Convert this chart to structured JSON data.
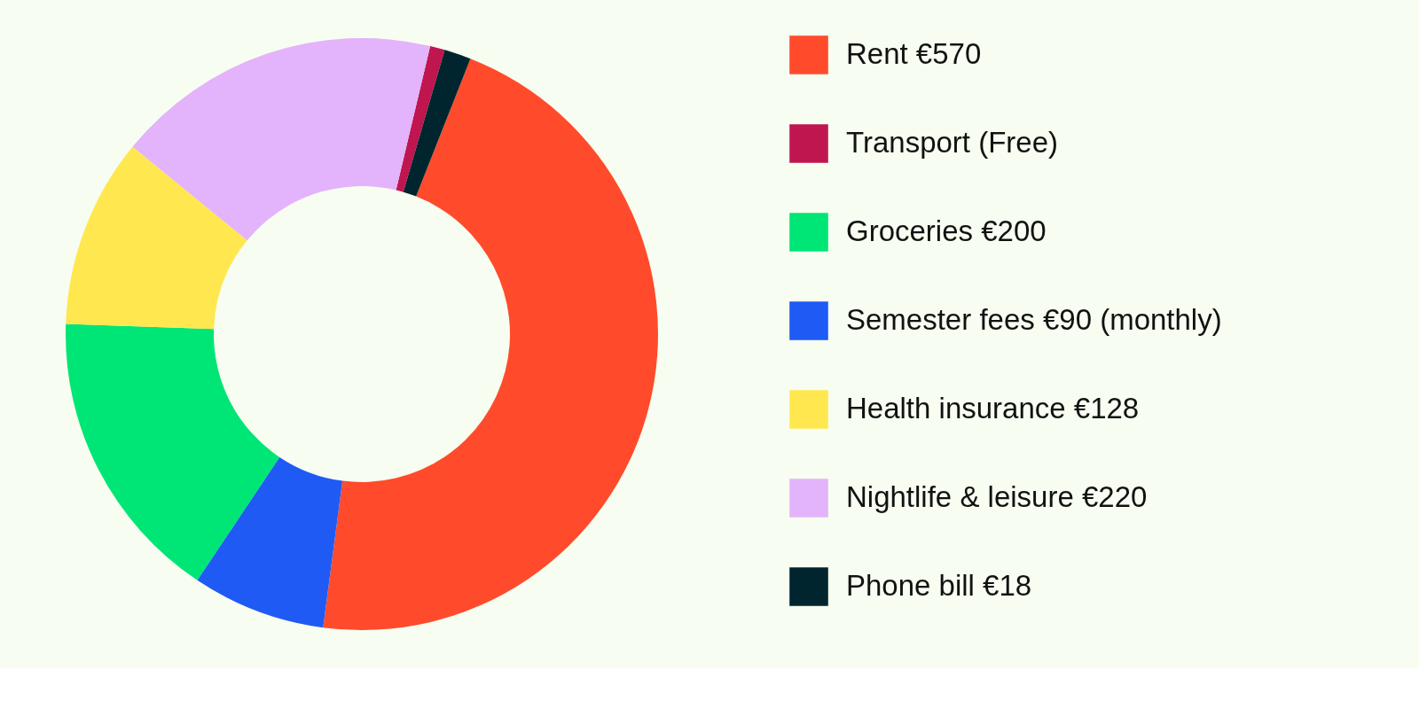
{
  "chart_data": {
    "type": "donut",
    "categories": [
      "Rent €570",
      "Transport (Free)",
      "Groceries €200",
      "Semester fees €90 (monthly)",
      "Health insurance €128",
      "Nightlife & leisure €220",
      "Phone bill €18"
    ],
    "values": [
      570,
      10,
      200,
      90,
      128,
      220,
      18
    ],
    "colors": [
      "#ff4b2b",
      "#bf1650",
      "#00e676",
      "#1f5af5",
      "#ffe84f",
      "#e3b3fb",
      "#00252e"
    ],
    "legend": "right"
  }
}
